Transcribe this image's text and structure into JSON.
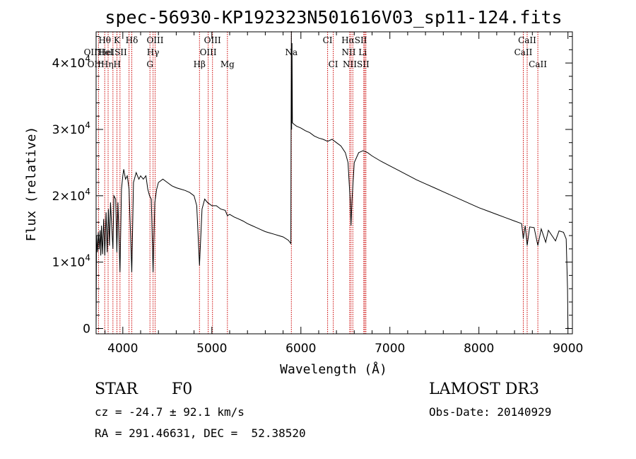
{
  "chart_data": {
    "type": "line",
    "title": "spec-56930-KP192323N501616V03_sp11-124.fits",
    "xlabel": "Wavelength (Å)",
    "ylabel": "Flux (relative)",
    "xlim": [
      3700,
      9050
    ],
    "ylim": [
      -800,
      44700
    ],
    "x_ticks": [
      4000,
      5000,
      6000,
      7000,
      8000,
      9000
    ],
    "x_tick_labels": [
      "4000",
      "5000",
      "6000",
      "7000",
      "8000",
      "9000"
    ],
    "y_ticks": [
      0,
      10000,
      20000,
      30000,
      40000
    ],
    "y_tick_labels": [
      {
        "mant": "0",
        "exp": ""
      },
      {
        "mant": "1×10",
        "exp": "4"
      },
      {
        "mant": "2×10",
        "exp": "4"
      },
      {
        "mant": "3×10",
        "exp": "4"
      },
      {
        "mant": "4×10",
        "exp": "4"
      }
    ],
    "line_color": "#000000",
    "marker_color": "#cc0000",
    "spectrum": [
      [
        3700,
        0
      ],
      [
        3705,
        14000
      ],
      [
        3715,
        11500
      ],
      [
        3725,
        14500
      ],
      [
        3735,
        12000
      ],
      [
        3745,
        14800
      ],
      [
        3752,
        11000
      ],
      [
        3760,
        15500
      ],
      [
        3772,
        11200
      ],
      [
        3785,
        16500
      ],
      [
        3798,
        11000
      ],
      [
        3812,
        17500
      ],
      [
        3825,
        11500
      ],
      [
        3838,
        18000
      ],
      [
        3850,
        12500
      ],
      [
        3862,
        19000
      ],
      [
        3875,
        15500
      ],
      [
        3889,
        12000
      ],
      [
        3900,
        20000
      ],
      [
        3920,
        19500
      ],
      [
        3933,
        11500
      ],
      [
        3945,
        19000
      ],
      [
        3968,
        8500
      ],
      [
        3985,
        21000
      ],
      [
        4000,
        23000
      ],
      [
        4010,
        24000
      ],
      [
        4030,
        22500
      ],
      [
        4050,
        23000
      ],
      [
        4070,
        21000
      ],
      [
        4101,
        8500
      ],
      [
        4120,
        22000
      ],
      [
        4150,
        23500
      ],
      [
        4180,
        22500
      ],
      [
        4200,
        23000
      ],
      [
        4230,
        22500
      ],
      [
        4260,
        23000
      ],
      [
        4280,
        21000
      ],
      [
        4300,
        20000
      ],
      [
        4320,
        19500
      ],
      [
        4340,
        8500
      ],
      [
        4360,
        19000
      ],
      [
        4380,
        21000
      ],
      [
        4400,
        22000
      ],
      [
        4450,
        22500
      ],
      [
        4500,
        22000
      ],
      [
        4550,
        21500
      ],
      [
        4600,
        21200
      ],
      [
        4650,
        21000
      ],
      [
        4700,
        20800
      ],
      [
        4750,
        20500
      ],
      [
        4800,
        20000
      ],
      [
        4830,
        18500
      ],
      [
        4861,
        9500
      ],
      [
        4890,
        18000
      ],
      [
        4920,
        19500
      ],
      [
        4950,
        19000
      ],
      [
        5000,
        18500
      ],
      [
        5050,
        18500
      ],
      [
        5100,
        18000
      ],
      [
        5150,
        17800
      ],
      [
        5175,
        17000
      ],
      [
        5200,
        17200
      ],
      [
        5250,
        16800
      ],
      [
        5300,
        16500
      ],
      [
        5350,
        16200
      ],
      [
        5400,
        15800
      ],
      [
        5450,
        15500
      ],
      [
        5500,
        15200
      ],
      [
        5550,
        14900
      ],
      [
        5600,
        14600
      ],
      [
        5650,
        14400
      ],
      [
        5700,
        14200
      ],
      [
        5750,
        14000
      ],
      [
        5800,
        13800
      ],
      [
        5860,
        13300
      ],
      [
        5888,
        12800
      ],
      [
        5890,
        30000
      ],
      [
        5893,
        44800
      ],
      [
        5896,
        30000
      ],
      [
        5900,
        43000
      ],
      [
        5905,
        31000
      ],
      [
        5920,
        30800
      ],
      [
        5950,
        30500
      ],
      [
        6000,
        30200
      ],
      [
        6050,
        29800
      ],
      [
        6100,
        29500
      ],
      [
        6150,
        29000
      ],
      [
        6200,
        28700
      ],
      [
        6250,
        28500
      ],
      [
        6300,
        28200
      ],
      [
        6350,
        28500
      ],
      [
        6400,
        28000
      ],
      [
        6450,
        27500
      ],
      [
        6500,
        26500
      ],
      [
        6530,
        25000
      ],
      [
        6555,
        19000
      ],
      [
        6563,
        15500
      ],
      [
        6575,
        19500
      ],
      [
        6600,
        25000
      ],
      [
        6650,
        26500
      ],
      [
        6700,
        26800
      ],
      [
        6750,
        26500
      ],
      [
        6800,
        26000
      ],
      [
        6900,
        25200
      ],
      [
        7000,
        24500
      ],
      [
        7100,
        23800
      ],
      [
        7200,
        23100
      ],
      [
        7300,
        22400
      ],
      [
        7400,
        21800
      ],
      [
        7500,
        21200
      ],
      [
        7600,
        20600
      ],
      [
        7700,
        20000
      ],
      [
        7800,
        19400
      ],
      [
        7900,
        18800
      ],
      [
        8000,
        18200
      ],
      [
        8100,
        17700
      ],
      [
        8200,
        17200
      ],
      [
        8300,
        16700
      ],
      [
        8400,
        16200
      ],
      [
        8480,
        15800
      ],
      [
        8498,
        13500
      ],
      [
        8520,
        15500
      ],
      [
        8542,
        12500
      ],
      [
        8570,
        15300
      ],
      [
        8620,
        15200
      ],
      [
        8662,
        12500
      ],
      [
        8700,
        15000
      ],
      [
        8750,
        13000
      ],
      [
        8780,
        14800
      ],
      [
        8860,
        13200
      ],
      [
        8900,
        14700
      ],
      [
        8950,
        14500
      ],
      [
        8980,
        13500
      ],
      [
        8995,
        6000
      ],
      [
        9000,
        0
      ]
    ],
    "lines_row1": [
      {
        "label": "Hθ",
        "x": 3797
      },
      {
        "label": "K",
        "x": 3934
      },
      {
        "label": "Hδ",
        "x": 4101
      },
      {
        "label": "OIII",
        "x": 4363
      },
      {
        "label": "OIII",
        "x": 5007
      },
      {
        "label": "CI",
        "x": 6300
      },
      {
        "label": "HαSII",
        "x": 6600
      },
      {
        "label": "CaII",
        "x": 8542
      }
    ],
    "lines_row2": [
      {
        "label": "OIIHeI",
        "x": 3727
      },
      {
        "label": "HeISII",
        "x": 3889
      },
      {
        "label": "Hγ",
        "x": 4340
      },
      {
        "label": "OIII",
        "x": 4959
      },
      {
        "label": "Na",
        "x": 5893
      },
      {
        "label": "NII Li",
        "x": 6600
      },
      {
        "label": "CaII",
        "x": 8498
      }
    ],
    "lines_row3": [
      {
        "label": "OIIHηH",
        "x": 3790
      },
      {
        "label": "G",
        "x": 4305
      },
      {
        "label": "Hβ",
        "x": 4861
      },
      {
        "label": "Mg",
        "x": 5175
      },
      {
        "label": "CI",
        "x": 6364
      },
      {
        "label": "NIISII",
        "x": 6620
      },
      {
        "label": "CaII",
        "x": 8662
      }
    ],
    "marker_lines": [
      3727,
      3797,
      3835,
      3889,
      3934,
      3968,
      4070,
      4101,
      4305,
      4340,
      4363,
      4861,
      4959,
      5007,
      5175,
      5893,
      6300,
      6364,
      6548,
      6563,
      6584,
      6707,
      6717,
      6731,
      8498,
      8542,
      8662
    ]
  },
  "info": {
    "object_class": "STAR",
    "subclass": "F0",
    "survey": "LAMOST DR3",
    "redshift": "cz = -24.7 ± 92.1 km/s",
    "obs_date": "Obs-Date: 20140929",
    "coords": "RA = 291.46631, DEC =  52.38520"
  }
}
